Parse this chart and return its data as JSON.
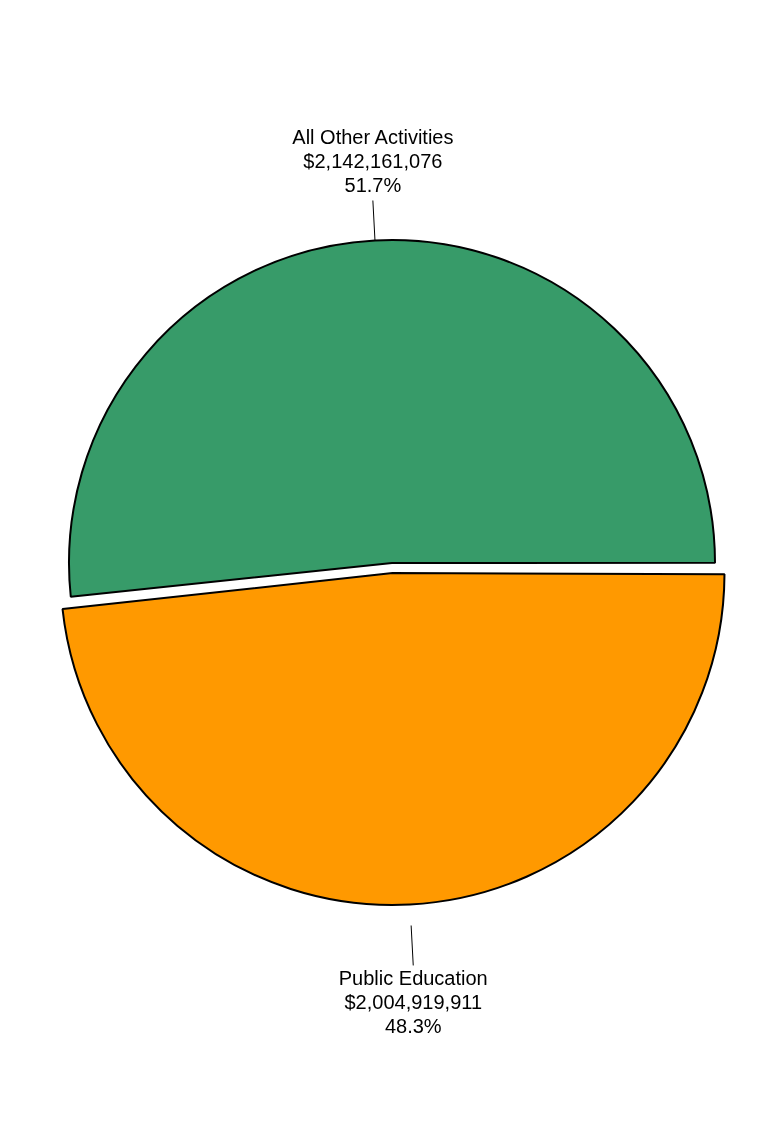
{
  "chart_data": {
    "type": "pie",
    "categories": [
      "All Other Activities",
      "Public Education"
    ],
    "values": [
      2142161076,
      2004919911
    ],
    "colors": [
      "#379b69",
      "#ff9900"
    ],
    "value_labels": [
      "$2,142,161,076\n51.7%",
      "$2,004,919,911\n48.3%"
    ],
    "legend": false
  }
}
